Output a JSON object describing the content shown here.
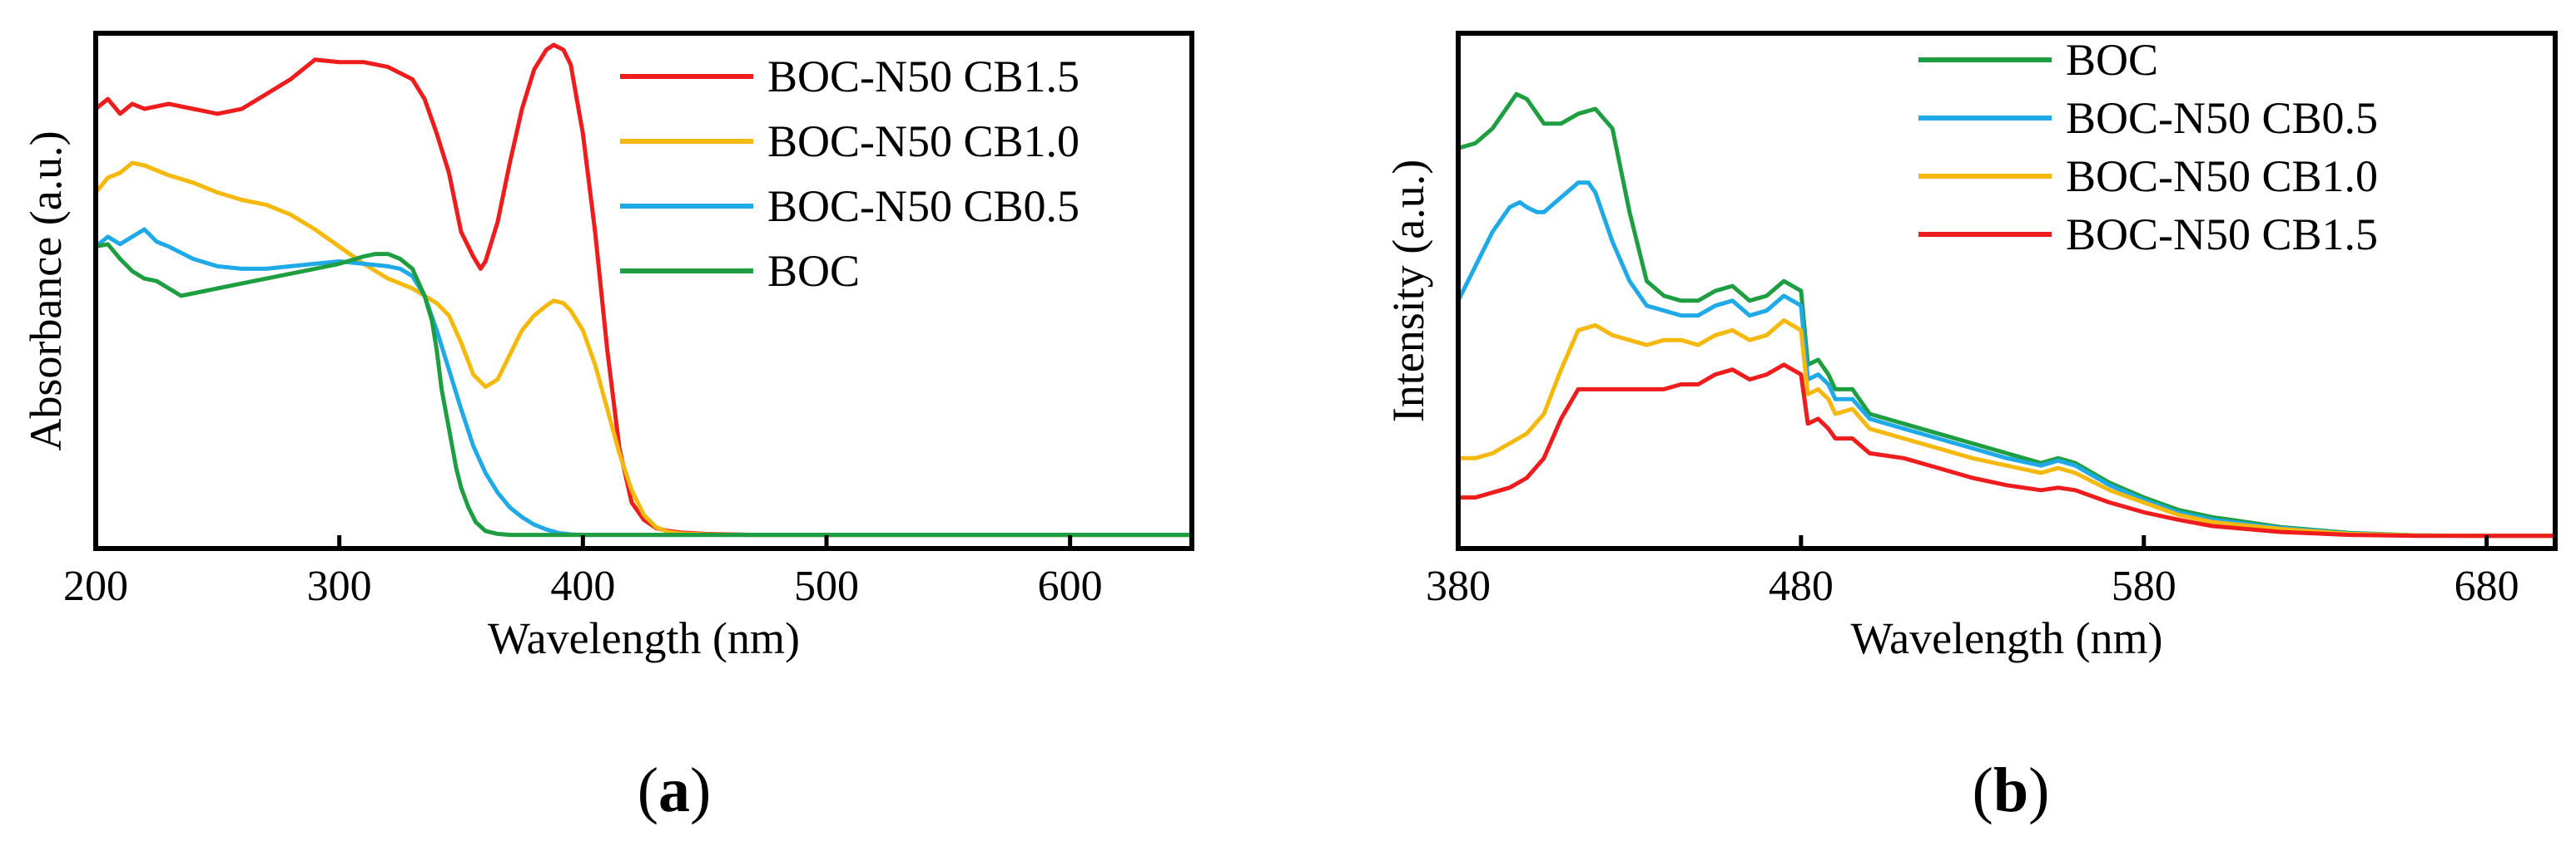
{
  "figure": {
    "panel_a_label": "a",
    "panel_b_label": "b"
  },
  "chart_data": [
    {
      "panel": "a",
      "type": "line",
      "xlabel": "Wavelength (nm)",
      "ylabel": "Absorbance (a.u.)",
      "xlim": [
        200,
        650
      ],
      "ylim": [
        0,
        1
      ],
      "xticks": [
        200,
        300,
        400,
        500,
        600
      ],
      "yticks": [],
      "grid": false,
      "legend_position": "top-right",
      "series": [
        {
          "name": "BOC-N50 CB1.5",
          "color": "#ee1c1c",
          "x": [
            200,
            205,
            210,
            215,
            220,
            230,
            240,
            250,
            260,
            270,
            280,
            290,
            300,
            310,
            320,
            330,
            335,
            340,
            345,
            350,
            355,
            358,
            360,
            365,
            370,
            375,
            380,
            385,
            388,
            392,
            395,
            400,
            405,
            410,
            415,
            420,
            425,
            430,
            435,
            440,
            450,
            470,
            500,
            550,
            600,
            650
          ],
          "y": [
            0.87,
            0.89,
            0.86,
            0.88,
            0.87,
            0.88,
            0.87,
            0.86,
            0.87,
            0.9,
            0.93,
            0.97,
            0.965,
            0.965,
            0.955,
            0.93,
            0.89,
            0.82,
            0.74,
            0.62,
            0.57,
            0.545,
            0.56,
            0.64,
            0.76,
            0.87,
            0.95,
            0.99,
            1.0,
            0.99,
            0.96,
            0.82,
            0.62,
            0.38,
            0.18,
            0.07,
            0.035,
            0.018,
            0.012,
            0.009,
            0.006,
            0.004,
            0.004,
            0.004,
            0.004,
            0.004
          ]
        },
        {
          "name": "BOC-N50 CB1.0",
          "color": "#f5b80d",
          "x": [
            200,
            205,
            210,
            215,
            220,
            225,
            230,
            240,
            250,
            260,
            270,
            280,
            290,
            300,
            310,
            320,
            330,
            340,
            345,
            350,
            355,
            360,
            365,
            370,
            375,
            380,
            385,
            388,
            392,
            395,
            400,
            405,
            410,
            415,
            420,
            425,
            430,
            435,
            440,
            450,
            470,
            500,
            550,
            600,
            650
          ],
          "y": [
            0.7,
            0.73,
            0.74,
            0.76,
            0.755,
            0.745,
            0.735,
            0.72,
            0.7,
            0.685,
            0.675,
            0.655,
            0.625,
            0.59,
            0.555,
            0.525,
            0.505,
            0.475,
            0.45,
            0.395,
            0.33,
            0.305,
            0.32,
            0.37,
            0.42,
            0.45,
            0.47,
            0.48,
            0.475,
            0.46,
            0.42,
            0.35,
            0.26,
            0.17,
            0.095,
            0.045,
            0.02,
            0.01,
            0.007,
            0.005,
            0.004,
            0.004,
            0.004,
            0.004,
            0.004
          ]
        },
        {
          "name": "BOC-N50 CB0.5",
          "color": "#1fa9e6",
          "x": [
            200,
            205,
            210,
            215,
            220,
            225,
            230,
            240,
            250,
            260,
            270,
            280,
            290,
            300,
            310,
            320,
            325,
            330,
            335,
            340,
            345,
            350,
            355,
            360,
            365,
            370,
            375,
            380,
            385,
            390,
            395,
            400,
            410,
            450,
            500,
            550,
            600,
            650
          ],
          "y": [
            0.59,
            0.61,
            0.595,
            0.61,
            0.625,
            0.6,
            0.59,
            0.565,
            0.55,
            0.545,
            0.545,
            0.55,
            0.555,
            0.56,
            0.555,
            0.55,
            0.545,
            0.53,
            0.49,
            0.42,
            0.34,
            0.26,
            0.185,
            0.13,
            0.09,
            0.06,
            0.04,
            0.025,
            0.015,
            0.008,
            0.005,
            0.004,
            0.004,
            0.004,
            0.004,
            0.004,
            0.004,
            0.004
          ]
        },
        {
          "name": "BOC",
          "color": "#1e9e41",
          "x": [
            200,
            205,
            210,
            215,
            220,
            225,
            230,
            235,
            240,
            250,
            260,
            270,
            280,
            290,
            300,
            310,
            315,
            320,
            325,
            330,
            335,
            338,
            340,
            342,
            345,
            348,
            350,
            353,
            356,
            360,
            365,
            370,
            380,
            400,
            450,
            500,
            550,
            600,
            650
          ],
          "y": [
            0.59,
            0.595,
            0.565,
            0.54,
            0.525,
            0.52,
            0.505,
            0.49,
            0.495,
            0.505,
            0.515,
            0.525,
            0.535,
            0.545,
            0.555,
            0.57,
            0.575,
            0.575,
            0.565,
            0.545,
            0.49,
            0.44,
            0.38,
            0.3,
            0.22,
            0.14,
            0.1,
            0.06,
            0.03,
            0.012,
            0.006,
            0.004,
            0.004,
            0.004,
            0.004,
            0.004,
            0.004,
            0.004,
            0.004
          ]
        }
      ]
    },
    {
      "panel": "b",
      "type": "line",
      "xlabel": "Wavelength (nm)",
      "ylabel": "Intensity (a.u.)",
      "xlim": [
        380,
        700
      ],
      "ylim": [
        0,
        1
      ],
      "xticks": [
        380,
        480,
        580,
        680
      ],
      "yticks": [],
      "grid": false,
      "legend_position": "top-right",
      "series": [
        {
          "name": "BOC",
          "color": "#1e9e41",
          "x": [
            380,
            385,
            390,
            395,
            397,
            400,
            405,
            410,
            415,
            420,
            425,
            430,
            435,
            440,
            445,
            450,
            455,
            460,
            465,
            470,
            475,
            480,
            482,
            485,
            488,
            490,
            495,
            500,
            510,
            520,
            530,
            540,
            550,
            555,
            560,
            570,
            580,
            590,
            600,
            620,
            640,
            660,
            680,
            700
          ],
          "y": [
            0.79,
            0.8,
            0.83,
            0.88,
            0.9,
            0.89,
            0.84,
            0.84,
            0.86,
            0.87,
            0.83,
            0.66,
            0.52,
            0.49,
            0.48,
            0.48,
            0.5,
            0.51,
            0.48,
            0.49,
            0.52,
            0.5,
            0.35,
            0.36,
            0.33,
            0.3,
            0.3,
            0.25,
            0.23,
            0.21,
            0.19,
            0.17,
            0.15,
            0.16,
            0.15,
            0.11,
            0.08,
            0.055,
            0.04,
            0.02,
            0.008,
            0.003,
            0.002,
            0.002
          ]
        },
        {
          "name": "BOC-N50 CB0.5",
          "color": "#1fa9e6",
          "x": [
            380,
            385,
            390,
            395,
            398,
            400,
            403,
            405,
            410,
            415,
            418,
            420,
            425,
            430,
            435,
            440,
            445,
            450,
            455,
            460,
            465,
            470,
            475,
            480,
            482,
            485,
            488,
            490,
            495,
            500,
            510,
            520,
            530,
            540,
            550,
            555,
            560,
            570,
            580,
            590,
            600,
            620,
            640,
            660,
            680,
            700
          ],
          "y": [
            0.48,
            0.55,
            0.62,
            0.67,
            0.68,
            0.67,
            0.66,
            0.66,
            0.69,
            0.72,
            0.72,
            0.7,
            0.6,
            0.52,
            0.47,
            0.46,
            0.45,
            0.45,
            0.47,
            0.48,
            0.45,
            0.46,
            0.49,
            0.47,
            0.32,
            0.33,
            0.31,
            0.28,
            0.28,
            0.24,
            0.22,
            0.2,
            0.18,
            0.16,
            0.145,
            0.155,
            0.145,
            0.105,
            0.075,
            0.05,
            0.035,
            0.018,
            0.007,
            0.003,
            0.002,
            0.002
          ]
        },
        {
          "name": "BOC-N50 CB1.0",
          "color": "#f5b80d",
          "x": [
            380,
            385,
            390,
            395,
            400,
            405,
            410,
            415,
            420,
            425,
            430,
            435,
            440,
            445,
            450,
            455,
            460,
            465,
            470,
            475,
            480,
            482,
            485,
            488,
            490,
            495,
            500,
            510,
            520,
            530,
            540,
            550,
            555,
            560,
            570,
            580,
            590,
            600,
            620,
            640,
            660,
            680,
            700
          ],
          "y": [
            0.16,
            0.16,
            0.17,
            0.19,
            0.21,
            0.25,
            0.34,
            0.42,
            0.43,
            0.41,
            0.4,
            0.39,
            0.4,
            0.4,
            0.39,
            0.41,
            0.42,
            0.4,
            0.41,
            0.44,
            0.42,
            0.29,
            0.3,
            0.28,
            0.25,
            0.26,
            0.22,
            0.2,
            0.18,
            0.16,
            0.145,
            0.13,
            0.14,
            0.13,
            0.095,
            0.07,
            0.045,
            0.03,
            0.016,
            0.006,
            0.003,
            0.002,
            0.002
          ]
        },
        {
          "name": "BOC-N50 CB1.5",
          "color": "#ee1c1c",
          "x": [
            380,
            385,
            390,
            395,
            400,
            405,
            410,
            415,
            420,
            425,
            430,
            435,
            440,
            445,
            450,
            455,
            460,
            465,
            470,
            475,
            480,
            482,
            485,
            488,
            490,
            495,
            500,
            510,
            520,
            530,
            540,
            550,
            555,
            560,
            570,
            580,
            590,
            600,
            620,
            640,
            660,
            680,
            700
          ],
          "y": [
            0.08,
            0.08,
            0.09,
            0.1,
            0.12,
            0.16,
            0.24,
            0.3,
            0.3,
            0.3,
            0.3,
            0.3,
            0.3,
            0.31,
            0.31,
            0.33,
            0.34,
            0.32,
            0.33,
            0.35,
            0.33,
            0.23,
            0.24,
            0.22,
            0.2,
            0.2,
            0.17,
            0.16,
            0.14,
            0.12,
            0.105,
            0.095,
            0.1,
            0.095,
            0.07,
            0.05,
            0.035,
            0.022,
            0.01,
            0.004,
            0.002,
            0.002,
            0.002
          ]
        }
      ]
    }
  ]
}
